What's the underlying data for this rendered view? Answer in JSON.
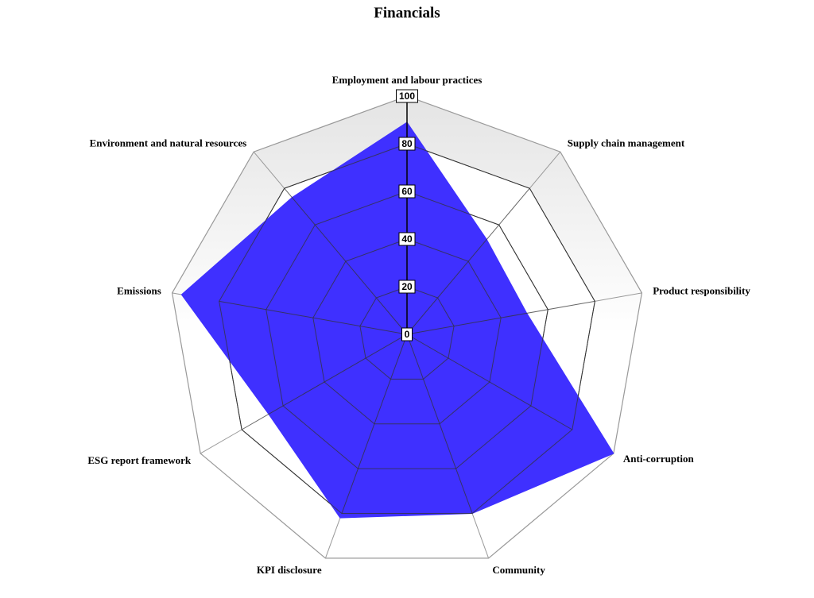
{
  "chart_data": {
    "type": "radar",
    "title": "Financials",
    "categories": [
      "Employment and labour practices",
      "Supply chain management",
      "Product responsibility",
      "Anti-corruption",
      "Community",
      "KPI disclosure",
      "ESG report framework",
      "Emissions",
      "Environment and natural resources"
    ],
    "series": [
      {
        "values": [
          89,
          52,
          51,
          100,
          80,
          82,
          67,
          96,
          75
        ],
        "color": "#3f30ff"
      }
    ],
    "ticks": [
      "0",
      "20",
      "40",
      "60",
      "80",
      "100"
    ],
    "rmax": 100,
    "grid": true,
    "colors": {
      "grid_inner": "#333333",
      "grid_outer": "#999999",
      "band_top": "#e4e4e4",
      "band_bottom": "#ffffff",
      "axis": "#000000"
    }
  }
}
